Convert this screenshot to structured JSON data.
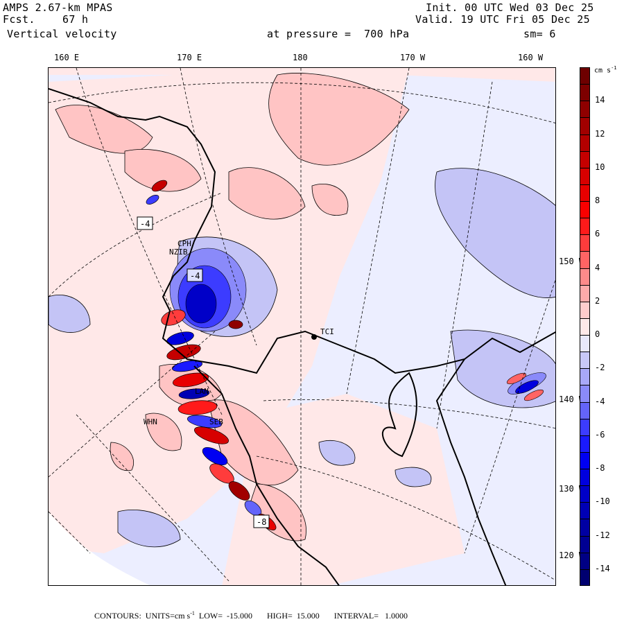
{
  "header": {
    "model": "AMPS 2.67-km MPAS",
    "forecast_label": "Fcst.",
    "forecast_value": "67 h",
    "field": "Vertical velocity",
    "level": "at pressure =  700 hPa",
    "init": "Init. 00 UTC Wed 03 Dec 25",
    "valid": "Valid. 19 UTC Fri 05 Dec 25",
    "smoothing": "sm= 6"
  },
  "map": {
    "top_lon_labels": [
      "160 E",
      "170 E",
      "180",
      "170 W",
      "160 W"
    ],
    "right_lon_labels": [
      "150 W",
      "140 W",
      "130 W",
      "120 W"
    ],
    "stations": [
      "CPH",
      "NZIB",
      "LAN",
      "WHN",
      "SEB",
      "TCI"
    ],
    "extrema_labels": [
      "-4",
      "-4",
      "-8"
    ]
  },
  "colorbar": {
    "units": "cm s",
    "units_exp": "-1",
    "tick_labels": [
      "14",
      "12",
      "10",
      "8",
      "6",
      "4",
      "2",
      "0",
      "-2",
      "-4",
      "-6",
      "-8",
      "-10",
      "-12",
      "-14"
    ],
    "colors": [
      "#6e0000",
      "#7d0000",
      "#8f0000",
      "#a10000",
      "#b30000",
      "#c50000",
      "#d70000",
      "#e80000",
      "#fa0000",
      "#ff1a1a",
      "#ff3c3c",
      "#ff6464",
      "#ff8a8a",
      "#ffaaaa",
      "#ffcccc",
      "#ffe9e9",
      "#e8e8fc",
      "#c8c8f8",
      "#a8a8f8",
      "#8a8afa",
      "#6464fa",
      "#3c3cff",
      "#1a1aff",
      "#0000f2",
      "#0000de",
      "#0000c8",
      "#0000b4",
      "#0000a2",
      "#000092",
      "#000084",
      "#000070"
    ]
  },
  "footer": {
    "contours": "CONTOURS:  UNITS=cm s",
    "units_exp": "-1",
    "low": "LOW=  -15.000",
    "high": "HIGH=  15.000",
    "interval": "INTERVAL=   1.0000"
  }
}
